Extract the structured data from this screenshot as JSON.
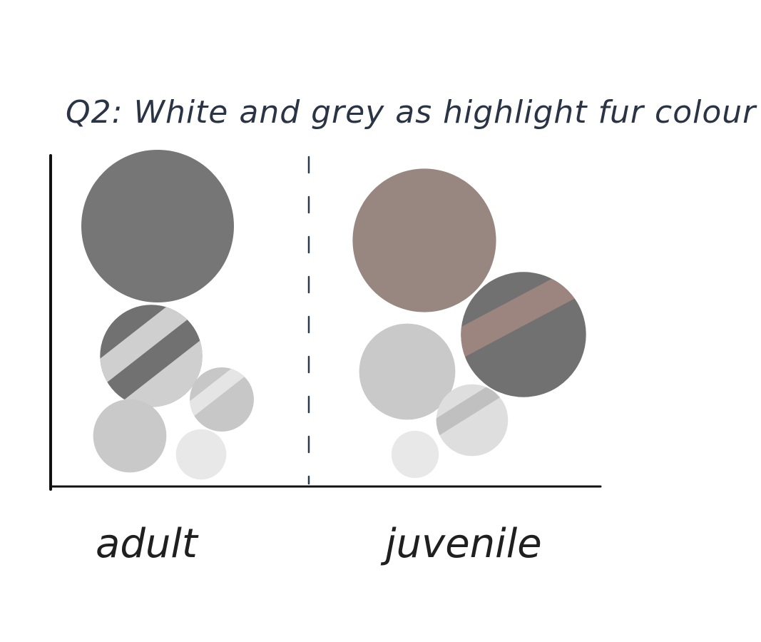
{
  "chart_data": {
    "type": "bubble",
    "title": "Q2: White and grey as highlight fur colour",
    "groups": [
      "adult",
      "juvenile"
    ],
    "grid": false,
    "legend": "none",
    "series": [
      {
        "group": "adult",
        "bubbles": [
          {
            "fill": "#767676",
            "size": 1.0,
            "stripe": null
          },
          {
            "fill": "#717171",
            "size": 0.67,
            "stripe": "#cfcfcf"
          },
          {
            "fill": "#c7c7c7",
            "size": 0.42,
            "stripe": "#e5e5e5"
          },
          {
            "fill": "#c9c9c9",
            "size": 0.48,
            "stripe": null
          },
          {
            "fill": "#e8e8e8",
            "size": 0.33,
            "stripe": null
          }
        ]
      },
      {
        "group": "juvenile",
        "bubbles": [
          {
            "fill": "#978780",
            "size": 0.94,
            "stripe": null
          },
          {
            "fill": "#717171",
            "size": 0.82,
            "stripe": "#9b857e"
          },
          {
            "fill": "#c9c9c9",
            "size": 0.63,
            "stripe": null
          },
          {
            "fill": "#dedede",
            "size": 0.47,
            "stripe": "#c0c0c0"
          },
          {
            "fill": "#e8e8e8",
            "size": 0.31,
            "stripe": null
          }
        ]
      }
    ]
  }
}
